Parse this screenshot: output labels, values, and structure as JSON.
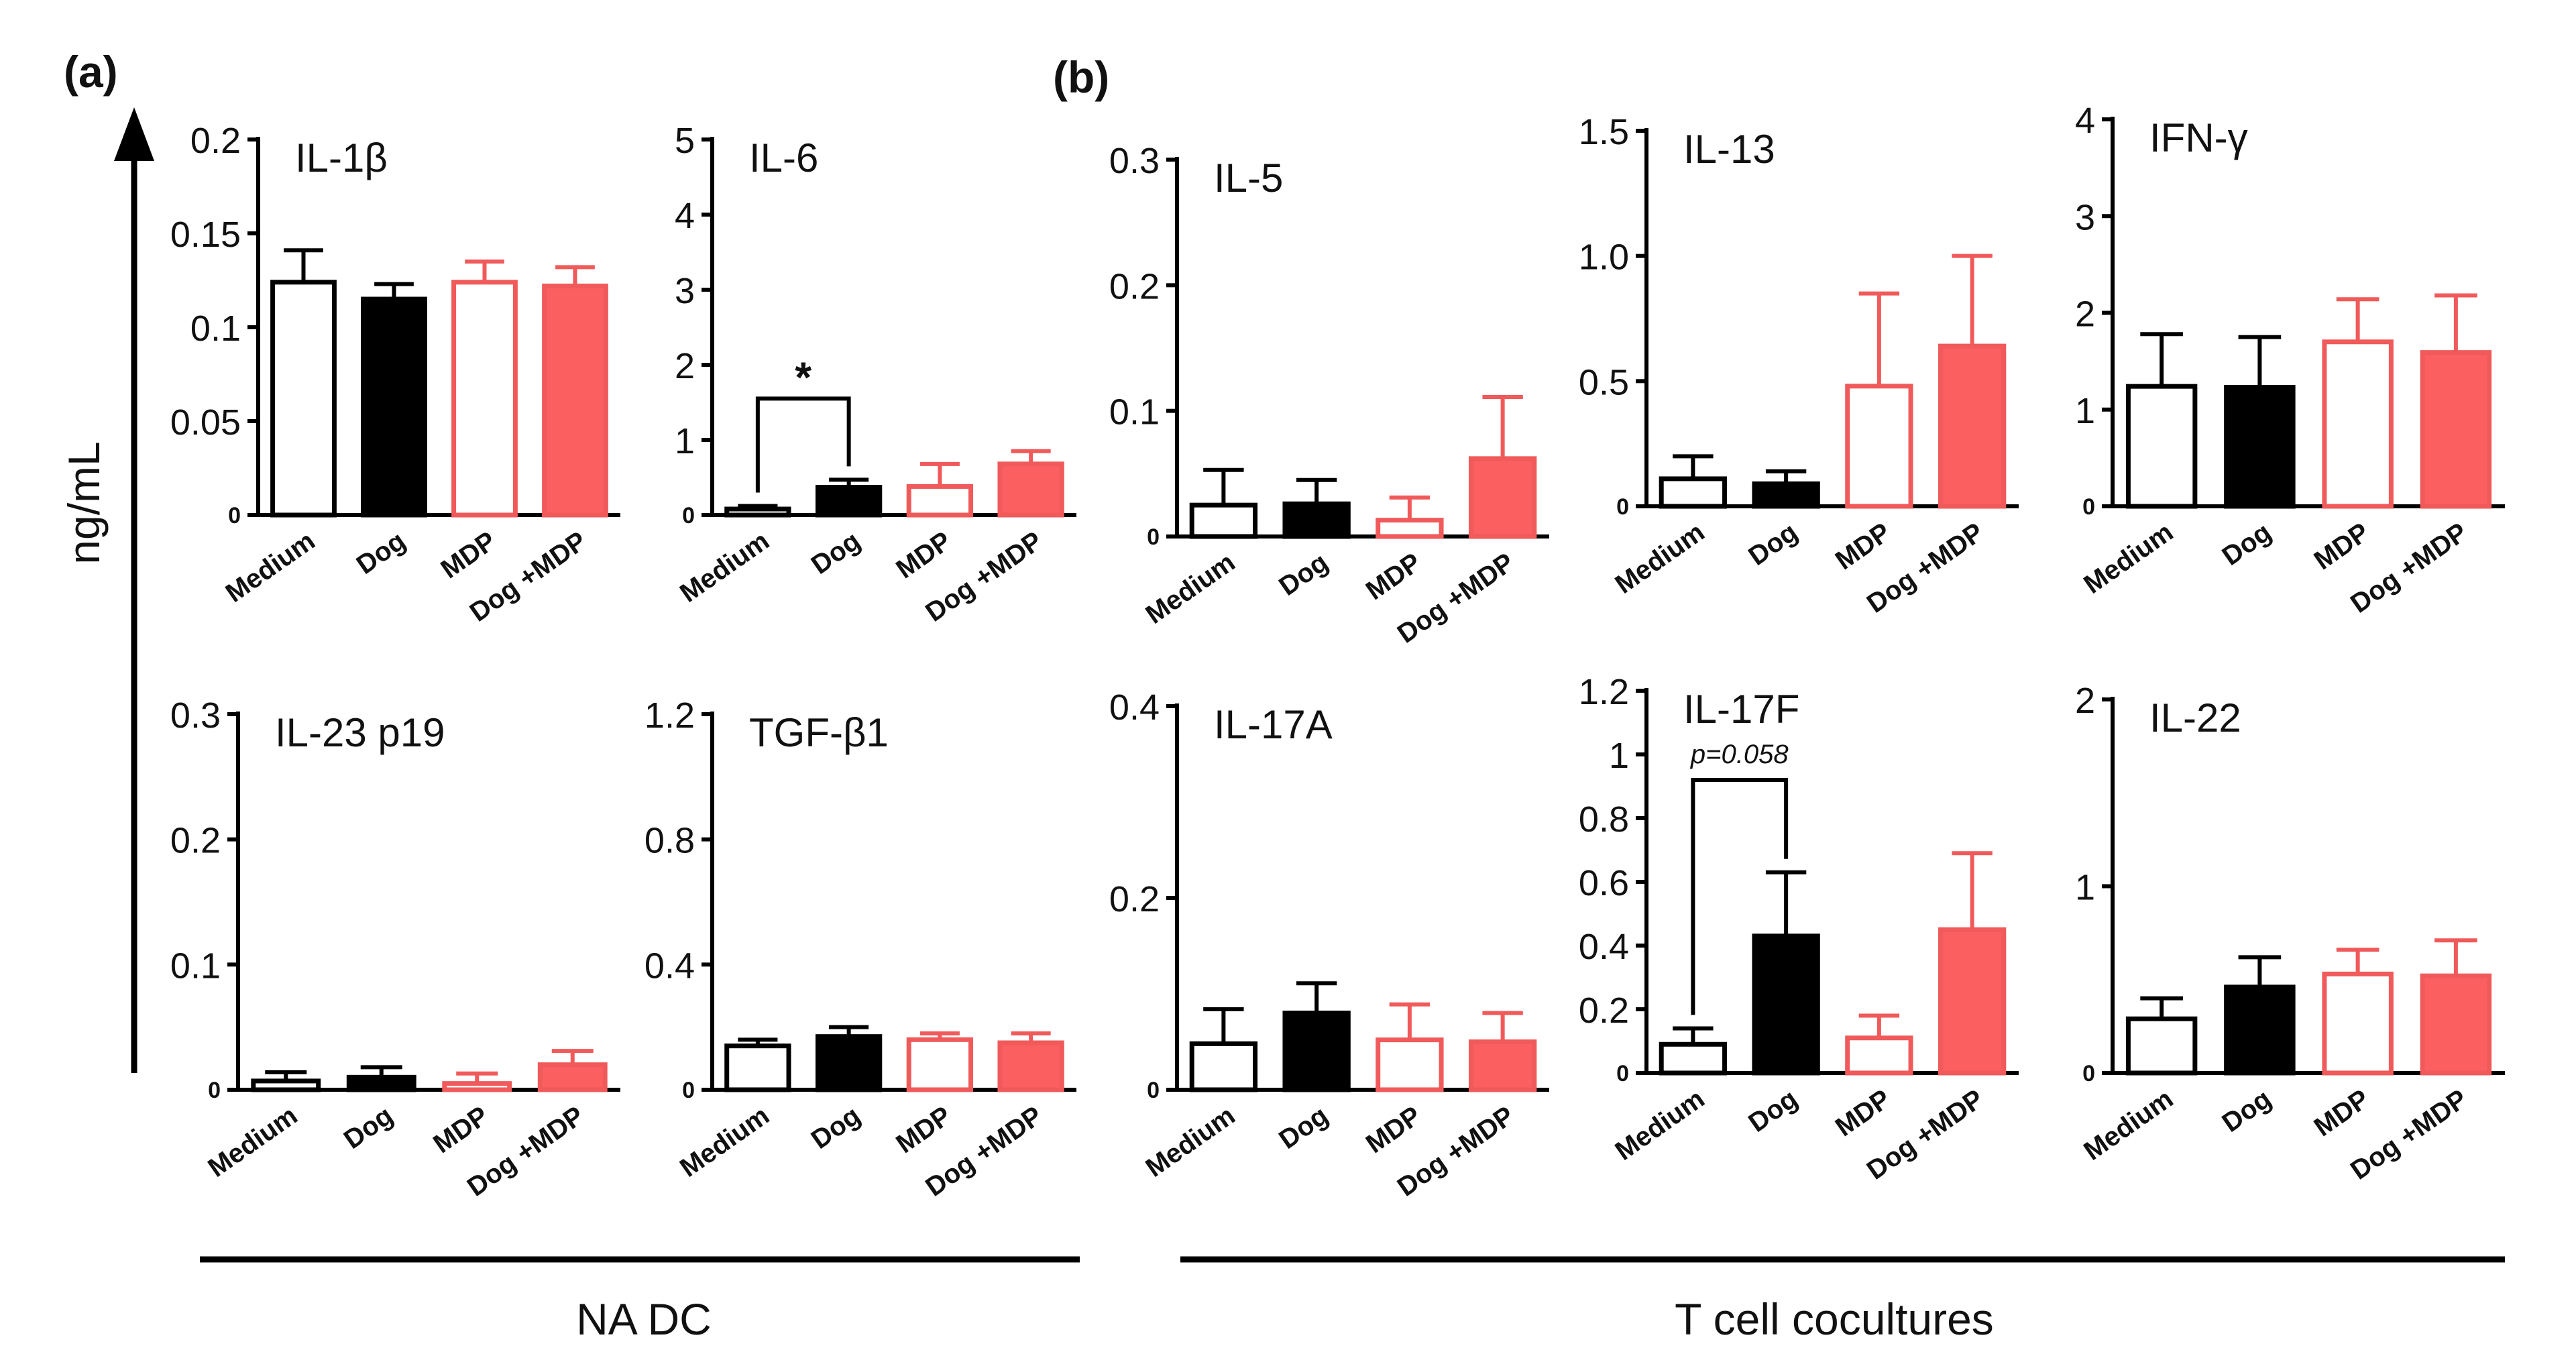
{
  "figure": {
    "panel_a_label": "(a)",
    "panel_b_label": "(b)",
    "y_unit_label": "ng/mL",
    "group_a_label": "NA DC",
    "group_b_label": "T cell cocultures"
  },
  "colors": {
    "black": "#000000",
    "red": "#f05a5a",
    "red_fill": "#fb5f5f"
  },
  "chart_data": [
    {
      "id": "il1b",
      "type": "bar",
      "title": "IL-1β",
      "group": "NA DC",
      "ylabel": "ng/mL",
      "categories": [
        "Medium",
        "Dog",
        "MDP",
        "Dog +MDP"
      ],
      "fills": [
        "white",
        "black",
        "white",
        "red"
      ],
      "values": [
        0.124,
        0.115,
        0.124,
        0.122
      ],
      "errors": [
        0.017,
        0.008,
        0.011,
        0.01
      ],
      "ylim": [
        0,
        0.2
      ],
      "ticks": [
        "0",
        "0.05",
        "0.1",
        "0.15",
        "0.2"
      ]
    },
    {
      "id": "il6",
      "type": "bar",
      "title": "IL-6",
      "group": "NA DC",
      "ylabel": "ng/mL",
      "categories": [
        "Medium",
        "Dog",
        "MDP",
        "Dog +MDP"
      ],
      "fills": [
        "white",
        "black",
        "white",
        "red"
      ],
      "values": [
        0.08,
        0.37,
        0.38,
        0.68
      ],
      "errors": [
        0.04,
        0.1,
        0.3,
        0.17
      ],
      "ylim": [
        0,
        5
      ],
      "ticks": [
        "0",
        "1",
        "2",
        "3",
        "4",
        "5"
      ],
      "annotation": {
        "text": "*",
        "from": 0,
        "to": 1,
        "at": 1.55
      }
    },
    {
      "id": "il5",
      "type": "bar",
      "title": "IL-5",
      "group": "T cell cocultures",
      "ylabel": "ng/mL",
      "categories": [
        "Medium",
        "Dog",
        "MDP",
        "Dog +MDP"
      ],
      "fills": [
        "white",
        "black",
        "white",
        "red"
      ],
      "values": [
        0.025,
        0.026,
        0.013,
        0.062
      ],
      "errors": [
        0.028,
        0.019,
        0.018,
        0.049
      ],
      "ylim": [
        0,
        0.3
      ],
      "ticks": [
        "0",
        "0.1",
        "0.2",
        "0.3"
      ]
    },
    {
      "id": "il13",
      "type": "bar",
      "title": "IL-13",
      "group": "T cell cocultures",
      "ylabel": "ng/mL",
      "categories": [
        "Medium",
        "Dog",
        "MDP",
        "Dog +MDP"
      ],
      "fills": [
        "white",
        "black",
        "white",
        "red"
      ],
      "values": [
        0.11,
        0.09,
        0.48,
        0.64
      ],
      "errors": [
        0.09,
        0.05,
        0.37,
        0.36
      ],
      "ylim": [
        0,
        1.5
      ],
      "ticks": [
        "0",
        "0.5",
        "1.0",
        "1.5"
      ]
    },
    {
      "id": "ifng",
      "type": "bar",
      "title": "IFN-γ",
      "group": "T cell cocultures",
      "ylabel": "ng/mL",
      "categories": [
        "Medium",
        "Dog",
        "MDP",
        "Dog +MDP"
      ],
      "fills": [
        "white",
        "black",
        "white",
        "red"
      ],
      "values": [
        1.24,
        1.23,
        1.7,
        1.59
      ],
      "errors": [
        0.54,
        0.52,
        0.44,
        0.59
      ],
      "ylim": [
        0,
        4
      ],
      "ticks": [
        "0",
        "1",
        "2",
        "3",
        "4"
      ]
    },
    {
      "id": "il23",
      "type": "bar",
      "title": "IL-23 p19",
      "group": "NA DC",
      "ylabel": "ng/mL",
      "categories": [
        "Medium",
        "Dog",
        "MDP",
        "Dog +MDP"
      ],
      "fills": [
        "white",
        "black",
        "white",
        "red"
      ],
      "values": [
        0.007,
        0.01,
        0.005,
        0.02
      ],
      "errors": [
        0.007,
        0.008,
        0.008,
        0.011
      ],
      "ylim": [
        0,
        0.3
      ],
      "ticks": [
        "0",
        "0.1",
        "0.2",
        "0.3"
      ]
    },
    {
      "id": "tgfb1",
      "type": "bar",
      "title": "TGF-β1",
      "group": "NA DC",
      "ylabel": "ng/mL",
      "categories": [
        "Medium",
        "Dog",
        "MDP",
        "Dog +MDP"
      ],
      "fills": [
        "white",
        "black",
        "white",
        "red"
      ],
      "values": [
        0.14,
        0.17,
        0.16,
        0.15
      ],
      "errors": [
        0.02,
        0.03,
        0.02,
        0.03
      ],
      "ylim": [
        0,
        1.2
      ],
      "ticks": [
        "0",
        "0.4",
        "0.8",
        "1.2"
      ]
    },
    {
      "id": "il17a",
      "type": "bar",
      "title": "IL-17A",
      "group": "T cell cocultures",
      "ylabel": "ng/mL",
      "categories": [
        "Medium",
        "Dog",
        "MDP",
        "Dog +MDP"
      ],
      "fills": [
        "white",
        "black",
        "white",
        "red"
      ],
      "values": [
        0.048,
        0.08,
        0.052,
        0.05
      ],
      "errors": [
        0.036,
        0.031,
        0.037,
        0.03
      ],
      "ylim": [
        0,
        0.4
      ],
      "ticks": [
        "0",
        "0.2",
        "0.4"
      ]
    },
    {
      "id": "il17f",
      "type": "bar",
      "title": "IL-17F",
      "group": "T cell cocultures",
      "ylabel": "ng/mL",
      "categories": [
        "Medium",
        "Dog",
        "MDP",
        "Dog +MDP"
      ],
      "fills": [
        "white",
        "black",
        "white",
        "red"
      ],
      "values": [
        0.09,
        0.43,
        0.11,
        0.45
      ],
      "errors": [
        0.05,
        0.2,
        0.07,
        0.24
      ],
      "ylim": [
        0,
        1.2
      ],
      "ticks": [
        "0",
        "0.2",
        "0.4",
        "0.6",
        "0.8",
        "1",
        "1.2"
      ],
      "annotation": {
        "text": "p=0.058",
        "from": 0,
        "to": 1,
        "at": 0.92
      }
    },
    {
      "id": "il22",
      "type": "bar",
      "title": "IL-22",
      "group": "T cell cocultures",
      "ylabel": "ng/mL",
      "categories": [
        "Medium",
        "Dog",
        "MDP",
        "Dog +MDP"
      ],
      "fills": [
        "white",
        "black",
        "white",
        "red"
      ],
      "values": [
        0.29,
        0.46,
        0.53,
        0.52
      ],
      "errors": [
        0.11,
        0.16,
        0.13,
        0.19
      ],
      "ylim": [
        0,
        2
      ],
      "ticks": [
        "0",
        "1",
        "2"
      ]
    }
  ]
}
